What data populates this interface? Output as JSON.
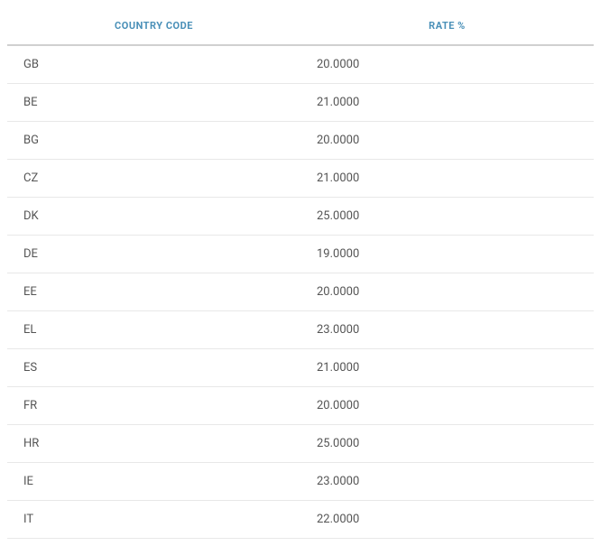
{
  "table": {
    "type": "table",
    "columns": [
      {
        "label": "COUNTRY CODE",
        "width": "50%",
        "align": "left"
      },
      {
        "label": "RATE %",
        "width": "50%",
        "align": "left"
      }
    ],
    "rows": [
      {
        "code": "GB",
        "rate": "20.0000"
      },
      {
        "code": "BE",
        "rate": "21.0000"
      },
      {
        "code": "BG",
        "rate": "20.0000"
      },
      {
        "code": "CZ",
        "rate": "21.0000"
      },
      {
        "code": "DK",
        "rate": "25.0000"
      },
      {
        "code": "DE",
        "rate": "19.0000"
      },
      {
        "code": "EE",
        "rate": "20.0000"
      },
      {
        "code": "EL",
        "rate": "23.0000"
      },
      {
        "code": "ES",
        "rate": "21.0000"
      },
      {
        "code": "FR",
        "rate": "20.0000"
      },
      {
        "code": "HR",
        "rate": "25.0000"
      },
      {
        "code": "IE",
        "rate": "23.0000"
      },
      {
        "code": "IT",
        "rate": "22.0000"
      }
    ],
    "header_color": "#4a90b8",
    "header_fontsize": 11,
    "cell_color": "#555555",
    "cell_fontsize": 13,
    "header_border_color": "#d0d0d0",
    "row_border_color": "#e8e8e8",
    "background_color": "#ffffff"
  }
}
